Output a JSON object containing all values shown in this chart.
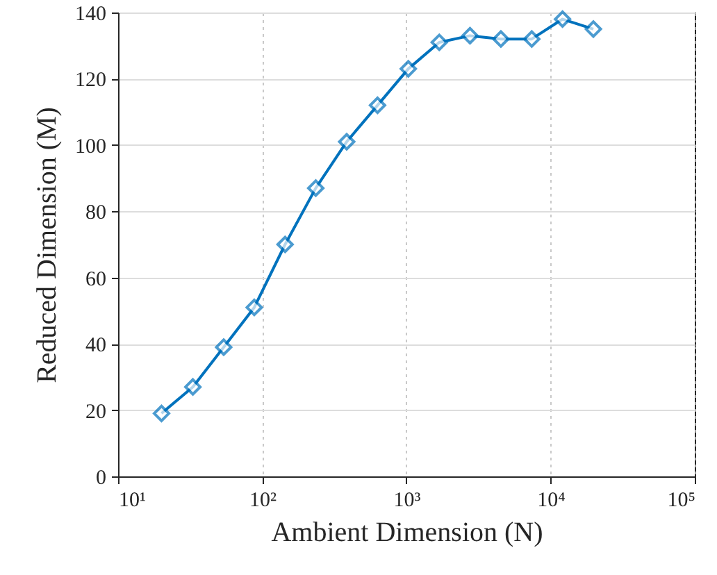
{
  "chart_data": {
    "type": "line",
    "xlabel": "Ambient Dimension (N)",
    "ylabel": "Reduced Dimension (M)",
    "log": "x",
    "grid": true,
    "marker": "diamond",
    "line_style": "solid",
    "xlim": [
      10,
      100000
    ],
    "xticks": [
      {
        "value": 10,
        "label": "10¹"
      },
      {
        "value": 100,
        "label": "10²"
      },
      {
        "value": 1000,
        "label": "10³"
      },
      {
        "value": 10000,
        "label": "10⁴"
      },
      {
        "value": 100000,
        "label": "10⁵"
      }
    ],
    "ylim": [
      0,
      140
    ],
    "yticks": [
      0,
      20,
      40,
      60,
      80,
      100,
      120,
      140
    ],
    "x": [
      20,
      33,
      54,
      88,
      144,
      235,
      385,
      630,
      1030,
      1690,
      2760,
      4520,
      7400,
      12100,
      19800
    ],
    "series": [
      {
        "color": "#0072bd",
        "values": [
          19,
          27,
          39,
          51,
          70,
          87,
          101,
          112,
          123,
          131,
          133,
          132,
          132,
          138,
          135
        ]
      }
    ]
  }
}
